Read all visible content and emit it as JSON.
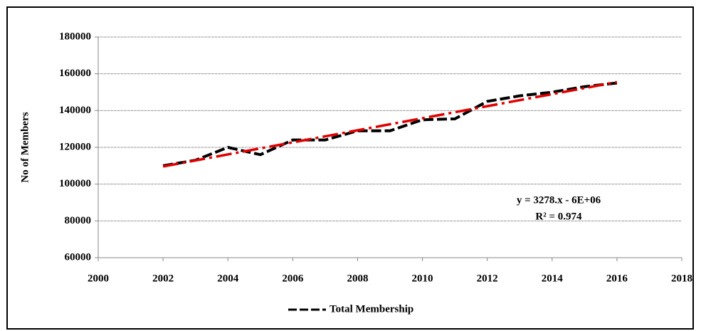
{
  "chart_data": {
    "type": "line",
    "y_axis_label": "No of Members",
    "x": [
      2002,
      2003,
      2004,
      2005,
      2006,
      2007,
      2008,
      2009,
      2010,
      2011,
      2012,
      2013,
      2014,
      2015,
      2016
    ],
    "series": [
      {
        "name": "Total Membership",
        "color": "#000000",
        "values": [
          110000,
          113000,
          120000,
          116000,
          124000,
          124000,
          129000,
          129000,
          135000,
          135500,
          145000,
          148000,
          150000,
          153000,
          155000
        ]
      }
    ],
    "trendline": {
      "color": "#e00000",
      "x": [
        2002,
        2016
      ],
      "values": [
        109600,
        155500
      ]
    },
    "annotations": [
      "y = 3278.x - 6E+06",
      "R² = 0.974"
    ],
    "xlim": [
      2000,
      2018
    ],
    "xticks": [
      2000,
      2002,
      2004,
      2006,
      2008,
      2010,
      2012,
      2014,
      2016,
      2018
    ],
    "ylim": [
      60000,
      180000
    ],
    "yticks": [
      60000,
      80000,
      100000,
      120000,
      140000,
      160000,
      180000
    ],
    "grid": true,
    "legend": "bottom"
  }
}
